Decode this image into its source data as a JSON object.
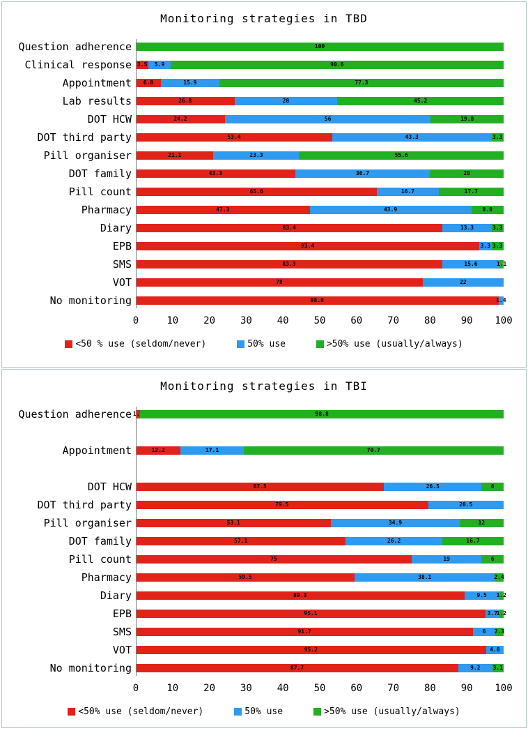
{
  "colors": {
    "red": "#e2231a",
    "blue": "#2e9af0",
    "green": "#22b022"
  },
  "chart_data": [
    {
      "type": "bar",
      "orientation": "horizontal",
      "stacked": true,
      "title": "Monitoring strategies in TBD",
      "xlim": [
        0,
        100
      ],
      "xticks": [
        "0",
        "10",
        "20",
        "30",
        "40",
        "50",
        "60",
        "70",
        "80",
        "90",
        "100"
      ],
      "grid": false,
      "legend_position": "bottom",
      "legend": [
        {
          "label": "<50 % use (seldom/never)",
          "color": "red"
        },
        {
          "label": "50% use",
          "color": "blue"
        },
        {
          "label": ">50% use (usually/always)",
          "color": "green"
        }
      ],
      "series_names": {
        "red": "<50 % use (seldom/never)",
        "blue": "50% use",
        "green": ">50% use (usually/always)"
      },
      "rows": [
        {
          "label": "Question adherence",
          "segments": [
            {
              "series": "green",
              "value": 100,
              "text": "100"
            }
          ]
        },
        {
          "label": "Clinical response",
          "segments": [
            {
              "series": "red",
              "value": 3.5,
              "text": "3.5"
            },
            {
              "series": "blue",
              "value": 5.9,
              "text": "5.9"
            },
            {
              "series": "green",
              "value": 90.6,
              "text": "90.6"
            }
          ]
        },
        {
          "label": "Appointment",
          "segments": [
            {
              "series": "red",
              "value": 6.8,
              "text": "6.8"
            },
            {
              "series": "blue",
              "value": 15.9,
              "text": "15.9"
            },
            {
              "series": "green",
              "value": 77.3,
              "text": "77.3"
            }
          ]
        },
        {
          "label": "Lab results",
          "segments": [
            {
              "series": "red",
              "value": 26.8,
              "text": "26.8"
            },
            {
              "series": "blue",
              "value": 28,
              "text": "28"
            },
            {
              "series": "green",
              "value": 45.2,
              "text": "45.2"
            }
          ]
        },
        {
          "label": "DOT HCW",
          "segments": [
            {
              "series": "red",
              "value": 24.2,
              "text": "24.2"
            },
            {
              "series": "blue",
              "value": 56,
              "text": "56"
            },
            {
              "series": "green",
              "value": 19.8,
              "text": "19.8"
            }
          ]
        },
        {
          "label": "DOT third party",
          "segments": [
            {
              "series": "red",
              "value": 53.4,
              "text": "53.4"
            },
            {
              "series": "blue",
              "value": 43.3,
              "text": "43.3"
            },
            {
              "series": "green",
              "value": 3.3,
              "text": "3.3"
            }
          ]
        },
        {
          "label": "Pill organiser",
          "segments": [
            {
              "series": "red",
              "value": 21.1,
              "text": "21.1"
            },
            {
              "series": "blue",
              "value": 23.3,
              "text": "23.3"
            },
            {
              "series": "green",
              "value": 55.6,
              "text": "55.6"
            }
          ]
        },
        {
          "label": "DOT family",
          "segments": [
            {
              "series": "red",
              "value": 43.3,
              "text": "43.3"
            },
            {
              "series": "blue",
              "value": 36.7,
              "text": "36.7"
            },
            {
              "series": "green",
              "value": 20,
              "text": "20"
            }
          ]
        },
        {
          "label": "Pill count",
          "segments": [
            {
              "series": "red",
              "value": 65.6,
              "text": "65.6"
            },
            {
              "series": "blue",
              "value": 16.7,
              "text": "16.7"
            },
            {
              "series": "green",
              "value": 17.7,
              "text": "17.7"
            }
          ]
        },
        {
          "label": "Pharmacy",
          "segments": [
            {
              "series": "red",
              "value": 47.3,
              "text": "47.3"
            },
            {
              "series": "blue",
              "value": 43.9,
              "text": "43.9"
            },
            {
              "series": "green",
              "value": 8.8,
              "text": "8.8"
            }
          ]
        },
        {
          "label": "Diary",
          "segments": [
            {
              "series": "red",
              "value": 83.4,
              "text": "83.4"
            },
            {
              "series": "blue",
              "value": 13.3,
              "text": "13.3"
            },
            {
              "series": "green",
              "value": 3.3,
              "text": "3.3"
            }
          ]
        },
        {
          "label": "EPB",
          "segments": [
            {
              "series": "red",
              "value": 93.4,
              "text": "93.4"
            },
            {
              "series": "blue",
              "value": 3.3,
              "text": "3.3"
            },
            {
              "series": "green",
              "value": 3.3,
              "text": "3.3"
            }
          ]
        },
        {
          "label": "SMS",
          "segments": [
            {
              "series": "red",
              "value": 83.3,
              "text": "83.3"
            },
            {
              "series": "blue",
              "value": 15.6,
              "text": "15.6"
            },
            {
              "series": "green",
              "value": 1.1,
              "text": "1.1"
            }
          ]
        },
        {
          "label": "VOT",
          "segments": [
            {
              "series": "red",
              "value": 78,
              "text": "78"
            },
            {
              "series": "blue",
              "value": 22,
              "text": "22"
            }
          ]
        },
        {
          "label": "No monitoring",
          "segments": [
            {
              "series": "red",
              "value": 98.6,
              "text": "98.6"
            },
            {
              "series": "blue",
              "value": 1.4,
              "text": "1.4"
            }
          ]
        }
      ]
    },
    {
      "type": "bar",
      "orientation": "horizontal",
      "stacked": true,
      "title": "Monitoring strategies in TBI",
      "xlim": [
        0,
        100
      ],
      "xticks": [
        "0",
        "10",
        "20",
        "30",
        "40",
        "50",
        "60",
        "70",
        "80",
        "90",
        "100"
      ],
      "grid": false,
      "legend_position": "bottom",
      "legend": [
        {
          "label": "<50% use (seldom/never)",
          "color": "red"
        },
        {
          "label": "50% use",
          "color": "blue"
        },
        {
          "label": ">50% use (usually/always)",
          "color": "green"
        }
      ],
      "series_names": {
        "red": "<50% use (seldom/never)",
        "blue": "50% use",
        "green": ">50% use (usually/always)"
      },
      "rows": [
        {
          "label": "Question adherence",
          "segments": [
            {
              "series": "red",
              "value": 1.2,
              "text": "1.2"
            },
            {
              "series": "green",
              "value": 98.8,
              "text": "98.8"
            }
          ]
        },
        {
          "label": "",
          "segments": []
        },
        {
          "label": "Appointment",
          "segments": [
            {
              "series": "red",
              "value": 12.2,
              "text": "12.2"
            },
            {
              "series": "blue",
              "value": 17.1,
              "text": "17.1"
            },
            {
              "series": "green",
              "value": 70.7,
              "text": "70.7"
            }
          ]
        },
        {
          "label": "",
          "segments": []
        },
        {
          "label": "DOT HCW",
          "segments": [
            {
              "series": "red",
              "value": 67.5,
              "text": "67.5"
            },
            {
              "series": "blue",
              "value": 26.5,
              "text": "26.5"
            },
            {
              "series": "green",
              "value": 6,
              "text": "6"
            }
          ]
        },
        {
          "label": "DOT third party",
          "segments": [
            {
              "series": "red",
              "value": 79.5,
              "text": "79.5"
            },
            {
              "series": "blue",
              "value": 20.5,
              "text": "20.5"
            }
          ]
        },
        {
          "label": "Pill organiser",
          "segments": [
            {
              "series": "red",
              "value": 53.1,
              "text": "53.1"
            },
            {
              "series": "blue",
              "value": 34.9,
              "text": "34.9"
            },
            {
              "series": "green",
              "value": 12,
              "text": "12"
            }
          ]
        },
        {
          "label": "DOT family",
          "segments": [
            {
              "series": "red",
              "value": 57.1,
              "text": "57.1"
            },
            {
              "series": "blue",
              "value": 26.2,
              "text": "26.2"
            },
            {
              "series": "green",
              "value": 16.7,
              "text": "16.7"
            }
          ]
        },
        {
          "label": "Pill count",
          "segments": [
            {
              "series": "red",
              "value": 75,
              "text": "75"
            },
            {
              "series": "blue",
              "value": 19,
              "text": "19"
            },
            {
              "series": "green",
              "value": 6,
              "text": "6"
            }
          ]
        },
        {
          "label": "Pharmacy",
          "segments": [
            {
              "series": "red",
              "value": 59.5,
              "text": "59.5"
            },
            {
              "series": "blue",
              "value": 38.1,
              "text": "38.1"
            },
            {
              "series": "green",
              "value": 2.4,
              "text": "2.4"
            }
          ]
        },
        {
          "label": "Diary",
          "segments": [
            {
              "series": "red",
              "value": 89.3,
              "text": "89.3"
            },
            {
              "series": "blue",
              "value": 9.5,
              "text": "9.5"
            },
            {
              "series": "green",
              "value": 1.2,
              "text": "1.2"
            }
          ]
        },
        {
          "label": "EPB",
          "segments": [
            {
              "series": "red",
              "value": 95.1,
              "text": "95.1"
            },
            {
              "series": "blue",
              "value": 3.7,
              "text": "3.7"
            },
            {
              "series": "green",
              "value": 1.2,
              "text": "1.2"
            }
          ]
        },
        {
          "label": "SMS",
          "segments": [
            {
              "series": "red",
              "value": 91.7,
              "text": "91.7"
            },
            {
              "series": "blue",
              "value": 6,
              "text": "6"
            },
            {
              "series": "green",
              "value": 2.3,
              "text": "2.3"
            }
          ]
        },
        {
          "label": "VOT",
          "segments": [
            {
              "series": "red",
              "value": 95.2,
              "text": "95.2"
            },
            {
              "series": "blue",
              "value": 4.8,
              "text": "4.8"
            }
          ]
        },
        {
          "label": "No monitoring",
          "segments": [
            {
              "series": "red",
              "value": 87.7,
              "text": "87.7"
            },
            {
              "series": "blue",
              "value": 9.2,
              "text": "9.2"
            },
            {
              "series": "green",
              "value": 3.1,
              "text": "3.1"
            }
          ]
        }
      ]
    }
  ]
}
